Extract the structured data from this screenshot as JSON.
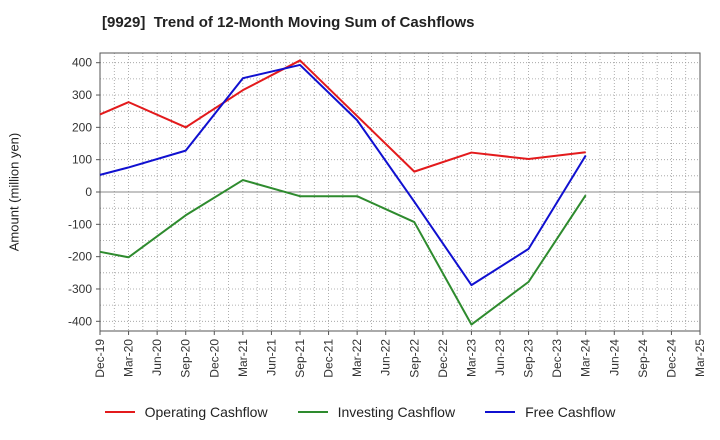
{
  "chart_data": {
    "type": "line",
    "title": "[9929]  Trend of 12-Month Moving Sum of Cashflows",
    "ylabel": "Amount (million yen)",
    "xlabel": "",
    "ylim": [
      -430,
      430
    ],
    "yticks": [
      400,
      300,
      200,
      100,
      0,
      -100,
      -200,
      -300,
      -400
    ],
    "categories": [
      "Dec-19",
      "Mar-20",
      "Jun-20",
      "Sep-20",
      "Dec-20",
      "Mar-21",
      "Jun-21",
      "Sep-21",
      "Dec-21",
      "Mar-22",
      "Jun-22",
      "Sep-22",
      "Dec-22",
      "Mar-23",
      "Jun-23",
      "Sep-23",
      "Dec-23",
      "Mar-24",
      "Jun-24",
      "Sep-24",
      "Dec-24",
      "Mar-25"
    ],
    "grid": true,
    "legend_position": "bottom",
    "series": [
      {
        "name": "Operating Cashflow",
        "color": "#e31a1c",
        "values": [
          240,
          278,
          null,
          200,
          null,
          315,
          null,
          407,
          null,
          235,
          null,
          63,
          null,
          122,
          null,
          102,
          null,
          123,
          null,
          null,
          null,
          null
        ]
      },
      {
        "name": "Investing Cashflow",
        "color": "#2e8b2e",
        "values": [
          -185,
          -202,
          null,
          -72,
          null,
          37,
          null,
          -13,
          null,
          -13,
          null,
          -93,
          null,
          -410,
          null,
          -278,
          null,
          -10,
          null,
          null,
          null,
          null
        ]
      },
      {
        "name": "Free Cashflow",
        "color": "#1010d0",
        "values": [
          53,
          76,
          null,
          128,
          null,
          352,
          null,
          393,
          null,
          222,
          null,
          -30,
          null,
          -288,
          null,
          -176,
          null,
          113,
          null,
          null,
          null,
          null
        ]
      }
    ]
  }
}
